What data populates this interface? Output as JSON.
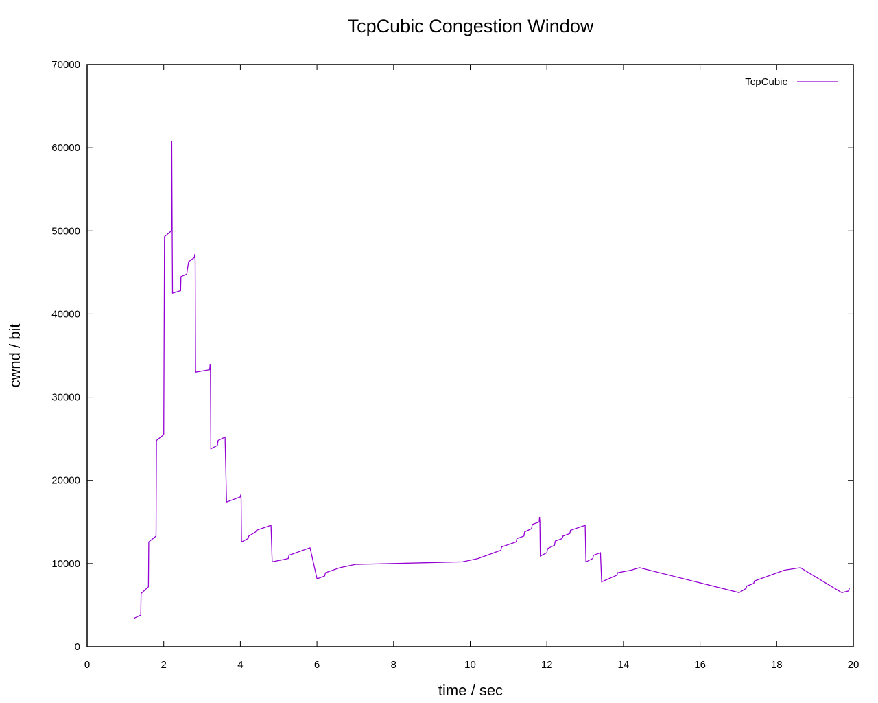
{
  "chart_data": {
    "type": "line",
    "title": "TcpCubic Congestion Window",
    "xlabel": "time / sec",
    "ylabel": "cwnd / bit",
    "xlim": [
      0,
      20
    ],
    "ylim": [
      0,
      70000
    ],
    "xticks": [
      0,
      2,
      4,
      6,
      8,
      10,
      12,
      14,
      16,
      18,
      20
    ],
    "yticks": [
      0,
      10000,
      20000,
      30000,
      40000,
      50000,
      60000,
      70000
    ],
    "grid": false,
    "legend_position": "top-right",
    "series": [
      {
        "name": "TcpCubic",
        "color": "#9400d3",
        "x": [
          1.22,
          1.4,
          1.41,
          1.6,
          1.61,
          1.8,
          1.81,
          2.0,
          2.02,
          2.2,
          2.21,
          2.22,
          2.23,
          2.44,
          2.45,
          2.6,
          2.65,
          2.8,
          2.81,
          2.82,
          2.83,
          3.2,
          3.21,
          3.22,
          3.23,
          3.4,
          3.42,
          3.6,
          3.64,
          4.0,
          4.01,
          4.02,
          4.03,
          4.2,
          4.22,
          4.4,
          4.42,
          4.8,
          4.83,
          5.25,
          5.27,
          5.82,
          6.0,
          6.02,
          6.2,
          6.22,
          6.6,
          7.0,
          9.8,
          10.2,
          10.8,
          10.82,
          11.2,
          11.22,
          11.4,
          11.42,
          11.6,
          11.62,
          11.8,
          11.81,
          11.82,
          11.83,
          12.0,
          12.02,
          12.2,
          12.22,
          12.4,
          12.42,
          12.6,
          12.62,
          13.0,
          13.02,
          13.2,
          13.22,
          13.4,
          13.43,
          13.83,
          13.85,
          14.2,
          14.42,
          17.02,
          17.2,
          17.22,
          17.4,
          17.42,
          18.2,
          18.62,
          19.7,
          19.88,
          19.9
        ],
        "y": [
          3400,
          3800,
          6400,
          7200,
          12600,
          13300,
          24800,
          25500,
          49300,
          50000,
          60800,
          50000,
          42500,
          42800,
          44500,
          44800,
          46300,
          46800,
          47200,
          46500,
          33000,
          33300,
          34000,
          33200,
          23800,
          24200,
          24800,
          25200,
          17400,
          18000,
          18300,
          18000,
          12600,
          13000,
          13300,
          13800,
          14000,
          14600,
          10200,
          10600,
          11000,
          11900,
          8200,
          8200,
          8500,
          8900,
          9500,
          9900,
          10200,
          10600,
          11600,
          12000,
          12600,
          13000,
          13300,
          13800,
          14200,
          14700,
          15000,
          15600,
          15000,
          10900,
          11300,
          11800,
          12200,
          12700,
          13000,
          13300,
          13600,
          14000,
          14600,
          10200,
          10600,
          11000,
          11300,
          7800,
          8600,
          8900,
          9200,
          9500,
          6500,
          7000,
          7300,
          7600,
          7900,
          9200,
          9500,
          6500,
          6700,
          7100
        ]
      }
    ]
  }
}
